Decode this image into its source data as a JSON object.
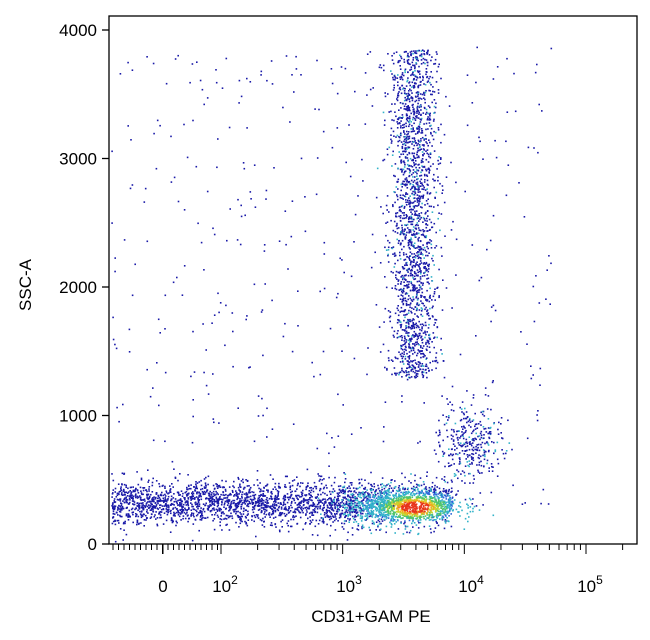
{
  "chart_data": {
    "type": "scatter",
    "title": "",
    "xlabel": "CD31+GAM PE",
    "ylabel": "SSC-A",
    "x_scale": "biexponential (log above ~10^2)",
    "ylim": [
      0,
      4000
    ],
    "y_ticks": [
      "0",
      "1000",
      "2000",
      "3000",
      "4000"
    ],
    "x_ticks": [
      {
        "base": "0",
        "exp": ""
      },
      {
        "base": "10",
        "exp": "2"
      },
      {
        "base": "10",
        "exp": "3"
      },
      {
        "base": "10",
        "exp": "4"
      },
      {
        "base": "10",
        "exp": "5"
      }
    ],
    "grid": false,
    "legend": "none",
    "density_colors": [
      "#1a1aa8",
      "#2b66d9",
      "#33b3c9",
      "#4fc46b",
      "#c6d62e",
      "#f2a81c",
      "#e8331c"
    ],
    "populations": [
      {
        "name": "CD31-negative band",
        "x_range": [
          "-1000",
          "6000"
        ],
        "y_center": 320,
        "y_spread": 90
      },
      {
        "name": "CD31-positive high SSC",
        "x_center": "3500",
        "y_range": [
          1300,
          3900
        ]
      },
      {
        "name": "CD31-positive low SSC",
        "x_center": "10000",
        "y_center": 780
      }
    ]
  }
}
